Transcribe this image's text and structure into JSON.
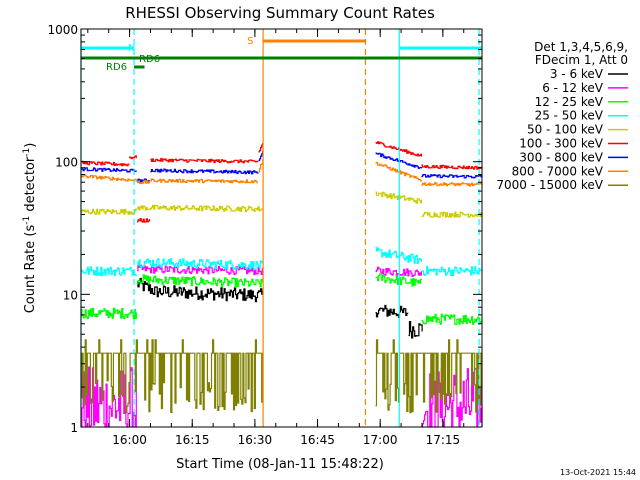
{
  "chart_data": {
    "type": "line",
    "title": "RHESSI Observing Summary Count Rates",
    "xlabel": "Start Time (08-Jan-11 15:48:22)",
    "ylabel_main": "Count Rate (s",
    "ylabel_sup1": "-1",
    "ylabel_mid": " detector",
    "ylabel_sup2": "-1",
    "ylabel_end": ")",
    "x_unit": "minutes since 15:48:22",
    "xlim": [
      0,
      96
    ],
    "ylim": [
      1,
      1000
    ],
    "yscale": "log",
    "x_ticks": [
      {
        "label": "16:00",
        "value": 11.63
      },
      {
        "label": "16:15",
        "value": 26.63
      },
      {
        "label": "16:30",
        "value": 41.63
      },
      {
        "label": "16:45",
        "value": 56.63
      },
      {
        "label": "17:00",
        "value": 71.63
      },
      {
        "label": "17:15",
        "value": 86.63
      }
    ],
    "y_ticks": [
      {
        "label": "1",
        "value": 1
      },
      {
        "label": "10",
        "value": 10
      },
      {
        "label": "100",
        "value": 100
      },
      {
        "label": "1000",
        "value": 1000
      }
    ],
    "legend": {
      "position": "right",
      "header1": "Det 1,3,4,5,6,9,",
      "header2": "FDecim 1, Att 0",
      "entries": [
        {
          "label": "3 - 6 keV",
          "color": "#000000"
        },
        {
          "label": "6 - 12 keV",
          "color": "#ff00ff"
        },
        {
          "label": "12 - 25 keV",
          "color": "#00ff00"
        },
        {
          "label": "25 - 50 keV",
          "color": "#00ffff"
        },
        {
          "label": "50 - 100 keV",
          "color": "#cccc00"
        },
        {
          "label": "100 - 300 keV",
          "color": "#ff0000"
        },
        {
          "label": "300 - 800 keV",
          "color": "#0000ff"
        },
        {
          "label": "800 - 7000 keV",
          "color": "#ff8000"
        },
        {
          "label": "7000 - 15000 keV",
          "color": "#808000"
        }
      ]
    },
    "annotations": {
      "n_label": "N",
      "s_label": "S",
      "rd6_label_1": "RD6",
      "rd6_label_2": "RD6"
    },
    "night_intervals": [
      [
        0,
        12.7
      ],
      [
        76.2,
        96
      ]
    ],
    "saa_interval": [
      43.6,
      68.1
    ],
    "rd6_long": [
      0,
      96
    ],
    "rd6_short": [
      12.7,
      15.2
    ],
    "vlines": [
      {
        "x": 0,
        "color": "#00ffff",
        "style": "solid"
      },
      {
        "x": 12.7,
        "color": "#00ffff",
        "style": "dashed"
      },
      {
        "x": 43.6,
        "color": "#ff8000",
        "style": "solid"
      },
      {
        "x": 68.1,
        "color": "#ff8000",
        "style": "dashed"
      },
      {
        "x": 76.2,
        "color": "#00ffff",
        "style": "solid"
      },
      {
        "x": 95.3,
        "color": "#00ffff",
        "style": "dashed"
      }
    ],
    "series": [
      {
        "name": "3 - 6 keV",
        "color": "#000000",
        "segments": [
          {
            "x0": 0,
            "x1": 13.4,
            "base": 6.0,
            "noise": 0.06,
            "hidden": true
          },
          {
            "x0": 13.4,
            "x1": 18,
            "base": 12,
            "end": 10.5,
            "noise": 0.05
          },
          {
            "x0": 18,
            "x1": 43.6,
            "base": 10.5,
            "end": 9.8,
            "noise": 0.05
          },
          {
            "x0": 70.5,
            "x1": 78.4,
            "base": 7.6,
            "end": 7.2,
            "noise": 0.05
          },
          {
            "x0": 78.4,
            "x1": 81.8,
            "base": 5.5,
            "noise": 0.07
          }
        ]
      },
      {
        "name": "6 - 12 keV",
        "color": "#ff00ff",
        "segments": [
          {
            "x0": 0,
            "x1": 13.4,
            "base": 1.45,
            "noise": 0.3,
            "floor": 1
          },
          {
            "x0": 13.4,
            "x1": 43.6,
            "base": 15.5,
            "end": 15,
            "noise": 0.03
          },
          {
            "x0": 70.5,
            "x1": 81.5,
            "base": 15,
            "end": 14.5,
            "noise": 0.03
          },
          {
            "x0": 81.5,
            "x1": 96,
            "base": 1.45,
            "noise": 0.3,
            "floor": 1
          }
        ]
      },
      {
        "name": "12 - 25 keV",
        "color": "#00ff00",
        "segments": [
          {
            "x0": 0,
            "x1": 13.4,
            "base": 7.2,
            "noise": 0.04
          },
          {
            "x0": 13.4,
            "x1": 43.6,
            "base": 13,
            "end": 12,
            "noise": 0.035
          },
          {
            "x0": 70.5,
            "x1": 81.5,
            "base": 13.5,
            "end": 12,
            "noise": 0.035
          },
          {
            "x0": 81.5,
            "x1": 96,
            "base": 6.5,
            "noise": 0.04
          }
        ]
      },
      {
        "name": "25 - 50 keV",
        "color": "#00ffff",
        "segments": [
          {
            "x0": 0,
            "x1": 13.4,
            "base": 15,
            "noise": 0.035
          },
          {
            "x0": 13.4,
            "x1": 43.6,
            "base": 17.5,
            "end": 16.5,
            "noise": 0.035
          },
          {
            "x0": 70.5,
            "x1": 81.5,
            "base": 21,
            "end": 18,
            "noise": 0.035
          },
          {
            "x0": 81.5,
            "x1": 96,
            "base": 15,
            "noise": 0.035
          }
        ]
      },
      {
        "name": "50 - 100 keV",
        "color": "#cccc00",
        "segments": [
          {
            "x0": 0,
            "x1": 13.4,
            "base": 42,
            "noise": 0.02
          },
          {
            "x0": 13.4,
            "x1": 43.6,
            "base": 45,
            "end": 44,
            "noise": 0.02
          },
          {
            "x0": 70.5,
            "x1": 81.5,
            "base": 58,
            "end": 50,
            "noise": 0.02
          },
          {
            "x0": 81.5,
            "x1": 96,
            "base": 40,
            "noise": 0.02
          }
        ]
      },
      {
        "name": "100 - 300 keV",
        "color": "#ff0000",
        "segments": [
          {
            "x0": 0,
            "x1": 11.5,
            "base": 98,
            "end": 95,
            "noise": 0.012
          },
          {
            "x0": 11.5,
            "x1": 13.4,
            "base": 108,
            "noise": 0.012
          },
          {
            "x0": 13.4,
            "x1": 16.6,
            "base": 36,
            "noise": 0.015
          },
          {
            "x0": 16.6,
            "x1": 42.5,
            "base": 103,
            "end": 100,
            "noise": 0.012
          },
          {
            "x0": 42.5,
            "x1": 43.6,
            "base": 118,
            "end": 140,
            "noise": 0.01
          },
          {
            "x0": 70.5,
            "x1": 81.5,
            "base": 140,
            "end": 110,
            "noise": 0.012
          },
          {
            "x0": 81.5,
            "x1": 96,
            "base": 92,
            "end": 90,
            "noise": 0.012
          }
        ]
      },
      {
        "name": "300 - 800 keV",
        "color": "#0000ff",
        "segments": [
          {
            "x0": 0,
            "x1": 13.4,
            "base": 88,
            "end": 85,
            "noise": 0.012
          },
          {
            "x0": 13.4,
            "x1": 16.6,
            "base": 72,
            "noise": 0.012
          },
          {
            "x0": 16.6,
            "x1": 42.5,
            "base": 86,
            "end": 83,
            "noise": 0.012
          },
          {
            "x0": 42.5,
            "x1": 43.6,
            "base": 100,
            "end": 125,
            "noise": 0.01
          },
          {
            "x0": 70.5,
            "x1": 81.5,
            "base": 115,
            "end": 90,
            "noise": 0.012
          },
          {
            "x0": 81.5,
            "x1": 96,
            "base": 78,
            "end": 77,
            "noise": 0.012
          }
        ]
      },
      {
        "name": "800 - 7000 keV",
        "color": "#ff8000",
        "segments": [
          {
            "x0": 0,
            "x1": 13.4,
            "base": 78,
            "end": 72,
            "noise": 0.012
          },
          {
            "x0": 13.4,
            "x1": 16.6,
            "base": 70,
            "noise": 0.012
          },
          {
            "x0": 16.6,
            "x1": 42.5,
            "base": 72,
            "end": 71,
            "noise": 0.012
          },
          {
            "x0": 42.5,
            "x1": 43.6,
            "base": 85,
            "end": 105,
            "noise": 0.01
          },
          {
            "x0": 70.5,
            "x1": 81.5,
            "base": 98,
            "end": 72,
            "noise": 0.012
          },
          {
            "x0": 81.5,
            "x1": 96,
            "base": 68,
            "end": 67,
            "noise": 0.012
          }
        ]
      },
      {
        "name": "7000 - 15000 keV",
        "color": "#808000",
        "segments": [
          {
            "x0": 0,
            "x1": 43.6,
            "base": 3.6,
            "noise": 0.12,
            "spiky": true
          },
          {
            "x0": 70.5,
            "x1": 96,
            "base": 3.6,
            "noise": 0.12,
            "spiky": true
          }
        ]
      }
    ],
    "timestamp": "13-Oct-2021 15:44"
  }
}
